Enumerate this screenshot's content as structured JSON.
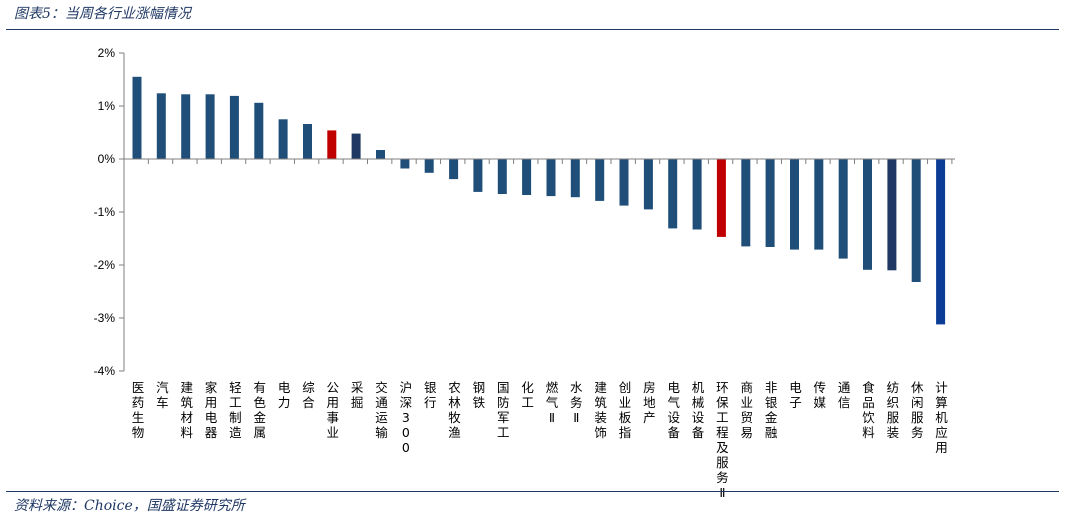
{
  "figure_title": "图表5：当周各行业涨幅情况",
  "source": "资料来源：Choice，国盛证券研究所",
  "colors": {
    "default": "#1f4e79",
    "highlight": "#c00000",
    "dark": "#1f3864",
    "index": "#0b3c96"
  },
  "chart_data": {
    "type": "bar",
    "title": "",
    "xlabel": "",
    "ylabel": "",
    "ylim": [
      -4,
      2
    ],
    "yticks": [
      "2%",
      "1%",
      "0%",
      "-1%",
      "-2%",
      "-3%",
      "-4%"
    ],
    "ytick_values": [
      2,
      1,
      0,
      -1,
      -2,
      -3,
      -4
    ],
    "grid": false,
    "legend": "none",
    "categories": [
      "医药生物",
      "汽车",
      "建筑材料",
      "家用电器",
      "轻工制造",
      "有色金属",
      "电力",
      "综合",
      "公用事业",
      "采掘",
      "交通运输",
      "沪深300",
      "银行",
      "农林牧渔",
      "钢铁",
      "国防军工",
      "化工",
      "燃气Ⅱ",
      "水务Ⅱ",
      "建筑装饰",
      "创业板指",
      "房地产",
      "电气设备",
      "机械设备",
      "环保工程及服务Ⅱ",
      "商业贸易",
      "非银金融",
      "电子",
      "传媒",
      "通信",
      "食品饮料",
      "纺织服装",
      "休闲服务",
      "计算机应用"
    ],
    "values": [
      1.55,
      1.24,
      1.22,
      1.22,
      1.19,
      1.06,
      0.75,
      0.66,
      0.54,
      0.48,
      0.17,
      -0.18,
      -0.26,
      -0.38,
      -0.62,
      -0.66,
      -0.68,
      -0.7,
      -0.72,
      -0.79,
      -0.88,
      -0.95,
      -1.31,
      -1.33,
      -1.47,
      -1.65,
      -1.66,
      -1.71,
      -1.71,
      -1.88,
      -2.09,
      -2.1,
      -2.32,
      -3.12
    ],
    "bar_colors": [
      "default",
      "default",
      "default",
      "default",
      "default",
      "default",
      "default",
      "default",
      "highlight",
      "dark",
      "default",
      "default",
      "default",
      "default",
      "default",
      "default",
      "default",
      "default",
      "default",
      "default",
      "default",
      "default",
      "default",
      "default",
      "highlight",
      "default",
      "default",
      "default",
      "default",
      "default",
      "default",
      "dark",
      "default",
      "index"
    ]
  }
}
